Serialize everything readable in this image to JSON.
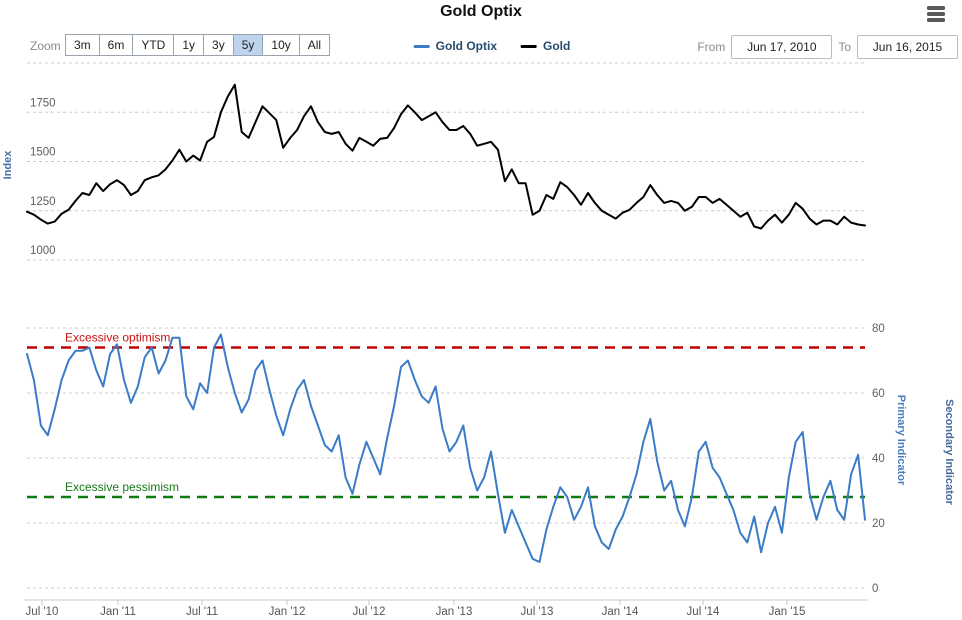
{
  "header": {
    "title": "Gold Optix",
    "menu_icon": "hamburger-icon"
  },
  "toolbar": {
    "zoom_label": "Zoom",
    "zoom_buttons": [
      {
        "label": "3m",
        "selected": false
      },
      {
        "label": "6m",
        "selected": false
      },
      {
        "label": "YTD",
        "selected": false
      },
      {
        "label": "1y",
        "selected": false
      },
      {
        "label": "3y",
        "selected": false
      },
      {
        "label": "5y",
        "selected": true
      },
      {
        "label": "10y",
        "selected": false
      },
      {
        "label": "All",
        "selected": false
      }
    ],
    "legend": [
      {
        "label": "Gold Optix",
        "color": "#3a7cc8"
      },
      {
        "label": "Gold",
        "color": "#000000"
      }
    ],
    "range": {
      "from_label": "From",
      "from_value": "Jun 17, 2010",
      "to_label": "To",
      "to_value": "Jun 16, 2015"
    }
  },
  "chart_data": [
    {
      "type": "line",
      "title": "Gold price pane",
      "ylabel": "Index",
      "ylabel_color": "#4572a7",
      "y_gridlines": [
        1000,
        1250,
        1500,
        1750,
        2000
      ],
      "y_tick_labels": [
        "1000",
        "1250",
        "1500",
        "1750"
      ],
      "ylim": [
        975,
        2025
      ],
      "grid": true,
      "x_start": "Jun 17, 2010",
      "x_end": "Jun 16, 2015",
      "points_per_month": 2,
      "series": [
        {
          "name": "Gold",
          "color": "#000000",
          "values": [
            1245,
            1230,
            1205,
            1185,
            1195,
            1235,
            1255,
            1300,
            1340,
            1330,
            1390,
            1350,
            1385,
            1405,
            1380,
            1330,
            1350,
            1405,
            1420,
            1430,
            1460,
            1505,
            1560,
            1500,
            1530,
            1505,
            1600,
            1625,
            1750,
            1830,
            1890,
            1650,
            1620,
            1700,
            1780,
            1745,
            1710,
            1570,
            1620,
            1660,
            1730,
            1780,
            1700,
            1650,
            1640,
            1650,
            1590,
            1555,
            1620,
            1600,
            1580,
            1615,
            1620,
            1670,
            1740,
            1785,
            1750,
            1710,
            1730,
            1750,
            1700,
            1660,
            1660,
            1680,
            1640,
            1580,
            1590,
            1600,
            1560,
            1400,
            1460,
            1390,
            1390,
            1230,
            1250,
            1330,
            1310,
            1395,
            1370,
            1330,
            1280,
            1340,
            1290,
            1250,
            1230,
            1210,
            1240,
            1255,
            1290,
            1320,
            1380,
            1330,
            1290,
            1300,
            1290,
            1250,
            1270,
            1320,
            1320,
            1290,
            1310,
            1280,
            1250,
            1220,
            1240,
            1170,
            1160,
            1200,
            1230,
            1190,
            1230,
            1290,
            1260,
            1210,
            1180,
            1200,
            1200,
            1180,
            1220,
            1190,
            1180,
            1175
          ]
        }
      ]
    },
    {
      "type": "line",
      "title": "Gold Optix pane",
      "ylabel_right_primary": "Primary Indicator",
      "ylabel_right_primary_color": "#4a7ebc",
      "ylabel_right_secondary": "Secondary Indicator",
      "ylabel_right_secondary_color": "#47699a",
      "y_ticks": [
        0,
        20,
        40,
        60,
        80
      ],
      "ylim": [
        0,
        85
      ],
      "grid": true,
      "x_start": "Jun 17, 2010",
      "x_end": "Jun 16, 2015",
      "x_tick_labels": [
        "Jul '10",
        "Jan '11",
        "Jul '11",
        "Jan '12",
        "Jul '12",
        "Jan '13",
        "Jul '13",
        "Jan '14",
        "Jul '14",
        "Jan '15"
      ],
      "points_per_month": 2,
      "thresholds": [
        {
          "label": "Excessive optimism",
          "value": 74,
          "color": "#c00000",
          "label_color": "#cc1111"
        },
        {
          "label": "Excessive pessimism",
          "value": 28,
          "color": "#0f7a0f",
          "label_color": "#1a7a1a"
        }
      ],
      "series": [
        {
          "name": "Gold Optix",
          "color": "#3a7cc8",
          "values": [
            72,
            64,
            50,
            47,
            55,
            64,
            70,
            73,
            73,
            74,
            67,
            62,
            72,
            75,
            64,
            57,
            62,
            71,
            74,
            66,
            70,
            77,
            77,
            59,
            55,
            63,
            60,
            74,
            78,
            68,
            60,
            54,
            58,
            67,
            70,
            61,
            53,
            47,
            55,
            61,
            64,
            56,
            50,
            44,
            42,
            47,
            34,
            29,
            38,
            45,
            40,
            35,
            46,
            56,
            68,
            70,
            64,
            59,
            57,
            62,
            49,
            42,
            45,
            50,
            37,
            30,
            34,
            42,
            29,
            17,
            24,
            19,
            14,
            9,
            8,
            18,
            25,
            31,
            28,
            21,
            25,
            31,
            19,
            14,
            12,
            18,
            22,
            28,
            35,
            45,
            52,
            39,
            30,
            33,
            24,
            19,
            28,
            42,
            45,
            37,
            34,
            29,
            24,
            17,
            14,
            22,
            11,
            20,
            25,
            17,
            34,
            45,
            48,
            29,
            21,
            28,
            33,
            24,
            21,
            35,
            41,
            21
          ]
        }
      ]
    }
  ]
}
